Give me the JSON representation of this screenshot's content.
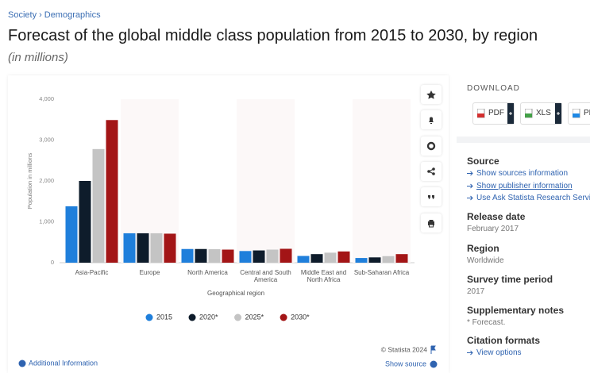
{
  "breadcrumb": [
    "Society",
    "Demographics"
  ],
  "breadcrumb_separator": "›",
  "title": "Forecast of the global middle class population from 2015 to 2030, by region",
  "subtitle": "(in millions)",
  "chart_data": {
    "type": "bar",
    "categories": [
      "Asia-Pacific",
      "Europe",
      "North America",
      "Central and South America",
      "Middle East and North Africa",
      "Sub-Saharan Africa"
    ],
    "series": [
      {
        "name": "2015",
        "color": "#1f7fdb",
        "values": [
          1380,
          720,
          335,
          285,
          165,
          115
        ]
      },
      {
        "name": "2020*",
        "color": "#0e1c2b",
        "values": [
          2000,
          720,
          335,
          300,
          210,
          130
        ]
      },
      {
        "name": "2025*",
        "color": "#c4c4c4",
        "values": [
          2780,
          720,
          330,
          320,
          245,
          160
        ]
      },
      {
        "name": "2030*",
        "color": "#a31516",
        "values": [
          3490,
          710,
          320,
          340,
          275,
          210
        ]
      }
    ],
    "ylim": [
      0,
      4000
    ],
    "yticks": [
      0,
      {
        "value": 1000,
        "label": "1,000"
      },
      {
        "value": 2000,
        "label": "2,000"
      },
      {
        "value": 3000,
        "label": "3,000"
      },
      {
        "value": 4000,
        "label": "4,000"
      }
    ],
    "ylabel": "Population in millions",
    "xlabel": "Geographical region",
    "grid": false,
    "legend": "bottom",
    "credit": "© Statista 2024"
  },
  "footer": {
    "info": "Additional Information",
    "source": "Show source"
  },
  "download": {
    "label": "DOWNLOAD",
    "buttons": [
      "PDF",
      "XLS",
      "PNG"
    ]
  },
  "details": {
    "source_title": "Source",
    "source_links": [
      "Show sources information",
      "Show publisher information",
      "Use Ask Statista Research Service"
    ],
    "sections": [
      {
        "title": "Release date",
        "value": "February 2017"
      },
      {
        "title": "Region",
        "value": "Worldwide"
      },
      {
        "title": "Survey time period",
        "value": "2017"
      },
      {
        "title": "Supplementary notes",
        "value": "* Forecast."
      }
    ],
    "citation_title": "Citation formats",
    "citation_link": "View options"
  }
}
